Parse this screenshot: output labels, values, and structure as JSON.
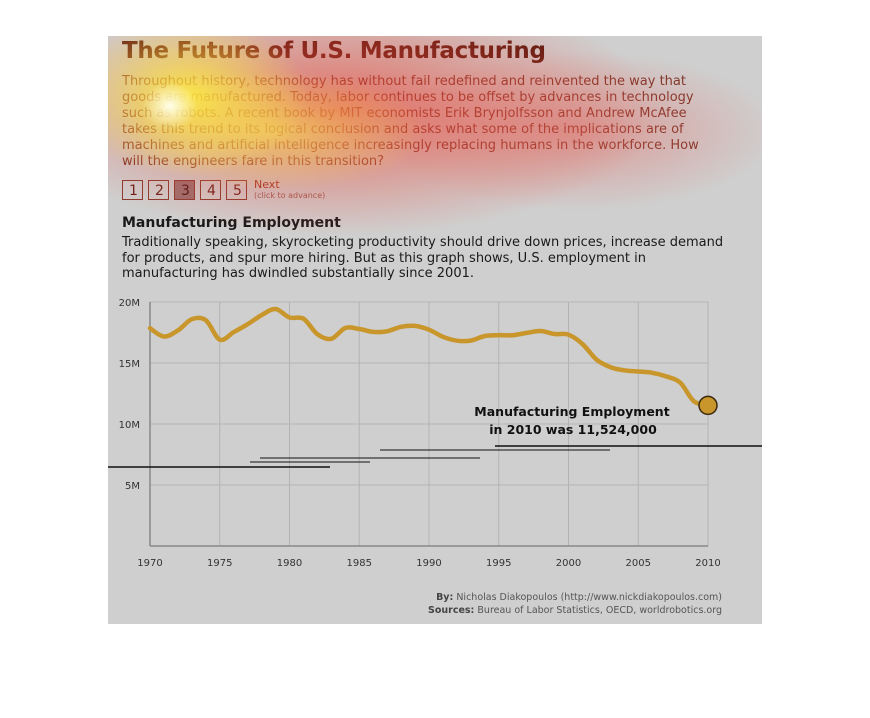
{
  "header": {
    "title": "The Future of U.S. Manufacturing",
    "intro": "Throughout history, technology has without fail redefined and reinvented the way that goods are manufactured. Today, labor continues to be offset by advances in technology such as robots. A recent book by MIT economists Erik Brynjolfsson and Andrew McAfee takes this trend to its logical conclusion and asks what some of the implications are of machines and artificial intelligence increasingly replacing humans in the workforce. How will the engineers fare in this transition?"
  },
  "pager": {
    "pages": [
      "1",
      "2",
      "3",
      "4",
      "5"
    ],
    "active_index": 2,
    "next_label": "Next",
    "next_hint": "(click to advance)"
  },
  "section": {
    "title": "Manufacturing Employment",
    "description": "Traditionally speaking, skyrocketing productivity should drive down prices, increase demand for products, and spur more hiring. But as this graph shows, U.S. employment in manufacturing has dwindled substantially since 2001."
  },
  "chart_data": {
    "type": "line",
    "title": "",
    "xlabel": "",
    "ylabel": "",
    "x": [
      1970,
      1971,
      1972,
      1973,
      1974,
      1975,
      1976,
      1977,
      1978,
      1979,
      1980,
      1981,
      1982,
      1983,
      1984,
      1985,
      1986,
      1987,
      1988,
      1989,
      1990,
      1991,
      1992,
      1993,
      1994,
      1995,
      1996,
      1997,
      1998,
      1999,
      2000,
      2001,
      2002,
      2003,
      2004,
      2005,
      2006,
      2007,
      2008,
      2009,
      2010
    ],
    "series": [
      {
        "name": "",
        "values": [
          17.85,
          17.17,
          17.67,
          18.59,
          18.51,
          16.91,
          17.53,
          18.18,
          18.93,
          19.43,
          18.73,
          18.63,
          17.36,
          16.98,
          17.87,
          17.79,
          17.55,
          17.6,
          17.97,
          18.04,
          17.73,
          17.15,
          16.83,
          16.84,
          17.21,
          17.28,
          17.28,
          17.47,
          17.62,
          17.38,
          17.32,
          16.56,
          15.29,
          14.66,
          14.4,
          14.3,
          14.2,
          13.9,
          13.4,
          11.85,
          11.524
        ]
      }
    ],
    "xticks": [
      "1970",
      "1975",
      "1980",
      "1985",
      "1990",
      "1995",
      "2000",
      "2005",
      "2010"
    ],
    "yticks": [
      "20M",
      "15M",
      "10M",
      "5M"
    ],
    "xlim": [
      1970,
      2010
    ],
    "ylim": [
      0,
      20
    ],
    "grid": true,
    "line_color": "#c8962a",
    "highlight": {
      "x": 2010,
      "y": 11.524
    },
    "annotation": [
      "Manufacturing Employment",
      "in 2010 was 11,524,000"
    ]
  },
  "credits": {
    "by_label": "By:",
    "by_text": "Nicholas Diakopoulos (http://www.nickdiakopoulos.com)",
    "sources_label": "Sources:",
    "sources_text": "Bureau of Labor Statistics, OECD, worldrobotics.org"
  }
}
